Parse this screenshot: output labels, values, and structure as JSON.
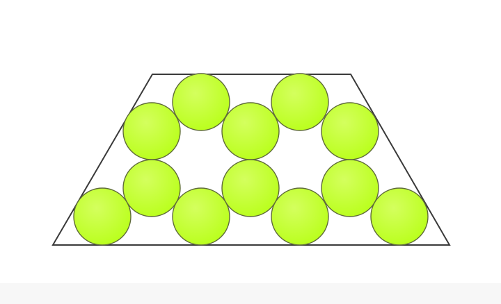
{
  "diagram": {
    "shape": "trapezoid",
    "circle_count": 12,
    "colors": {
      "background": "#ffffff",
      "outline": "#3a3a3a",
      "circle_fill": "#b9ff1a",
      "circle_highlight": "#d4ff5e",
      "circle_edge": "#5f6b3a",
      "bottom_band": "#f7f7f7"
    }
  }
}
